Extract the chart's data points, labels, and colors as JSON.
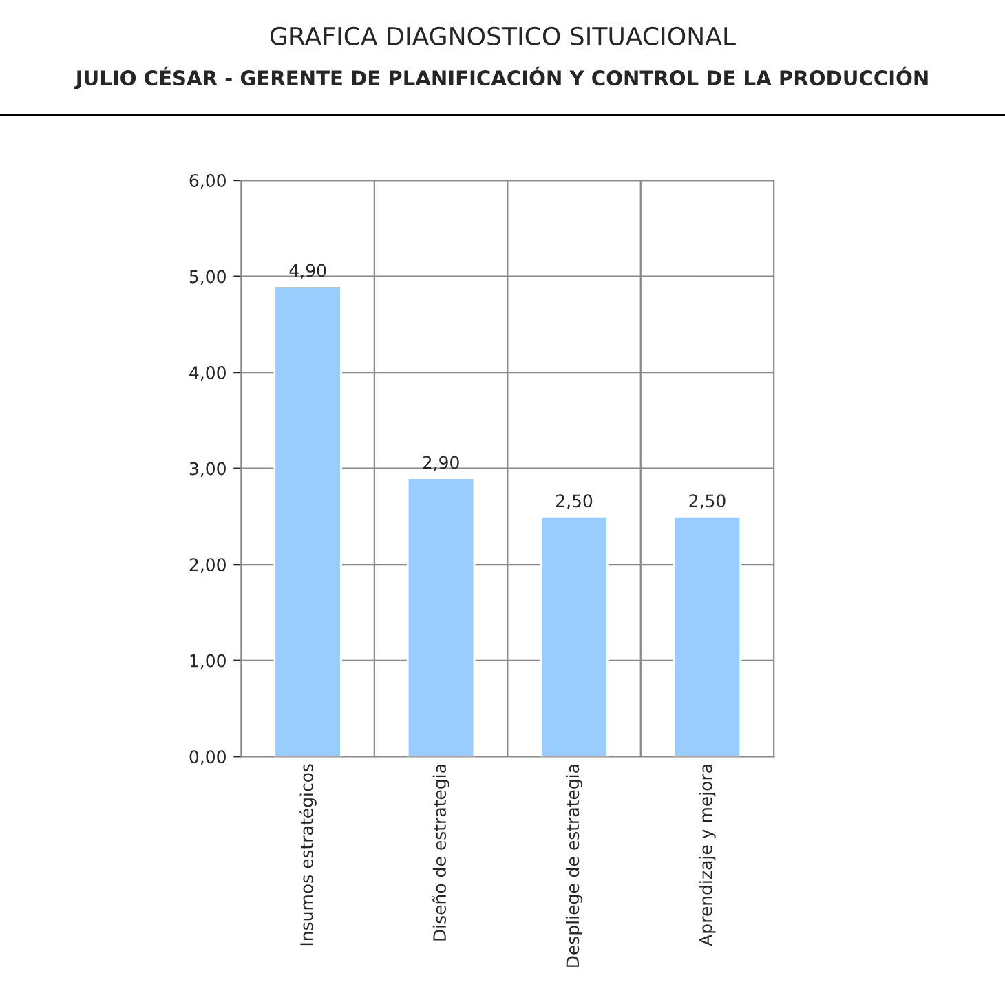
{
  "chart_data": {
    "type": "bar",
    "title": "GRAFICA DIAGNOSTICO SITUACIONAL",
    "subtitle": "JULIO CÉSAR - GERENTE DE PLANIFICACIÓN Y CONTROL DE LA PRODUCCIÓN",
    "categories": [
      "Insumos estratégicos",
      "Diseño de estrategia",
      "Despliege de estrategia",
      "Aprendizaje y mejora"
    ],
    "values": [
      4.9,
      2.9,
      2.5,
      2.5
    ],
    "value_labels": [
      "4,90",
      "2,90",
      "2,50",
      "2,50"
    ],
    "color": "#99ccff",
    "ylim": [
      0,
      6
    ],
    "yticks": [
      {
        "value": 0,
        "label": "0,00"
      },
      {
        "value": 1,
        "label": "1,00"
      },
      {
        "value": 2,
        "label": "2,00"
      },
      {
        "value": 3,
        "label": "3,00"
      },
      {
        "value": 4,
        "label": "4,00"
      },
      {
        "value": 5,
        "label": "5,00"
      },
      {
        "value": 6,
        "label": "6,00"
      }
    ],
    "grid": true,
    "legend": false
  }
}
